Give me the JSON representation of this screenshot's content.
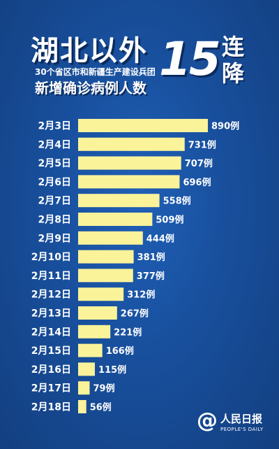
{
  "header": {
    "title": "湖北以外",
    "subtitle": "30个省区市和新疆生产建设兵团",
    "subtitle2": "新增确诊病例人数",
    "big_number": "15",
    "word_top": "连",
    "word_bottom": "降"
  },
  "brand": {
    "at": "@",
    "name": "人民日报",
    "en": "PEOPLE'S DAILY"
  },
  "colors": {
    "background": "#184f9c",
    "bar": "#fbf39a",
    "text": "#ffffff"
  },
  "chart_data": {
    "type": "bar",
    "orientation": "horizontal",
    "value_suffix": "例",
    "categories": [
      "2月3日",
      "2月4日",
      "2月5日",
      "2月6日",
      "2月7日",
      "2月8日",
      "2月9日",
      "2月10日",
      "2月11日",
      "2月12日",
      "2月13日",
      "2月14日",
      "2月15日",
      "2月16日",
      "2月17日",
      "2月18日"
    ],
    "values": [
      890,
      731,
      707,
      696,
      558,
      509,
      444,
      381,
      377,
      312,
      267,
      221,
      166,
      115,
      79,
      56
    ],
    "xlim": [
      0,
      890
    ]
  }
}
